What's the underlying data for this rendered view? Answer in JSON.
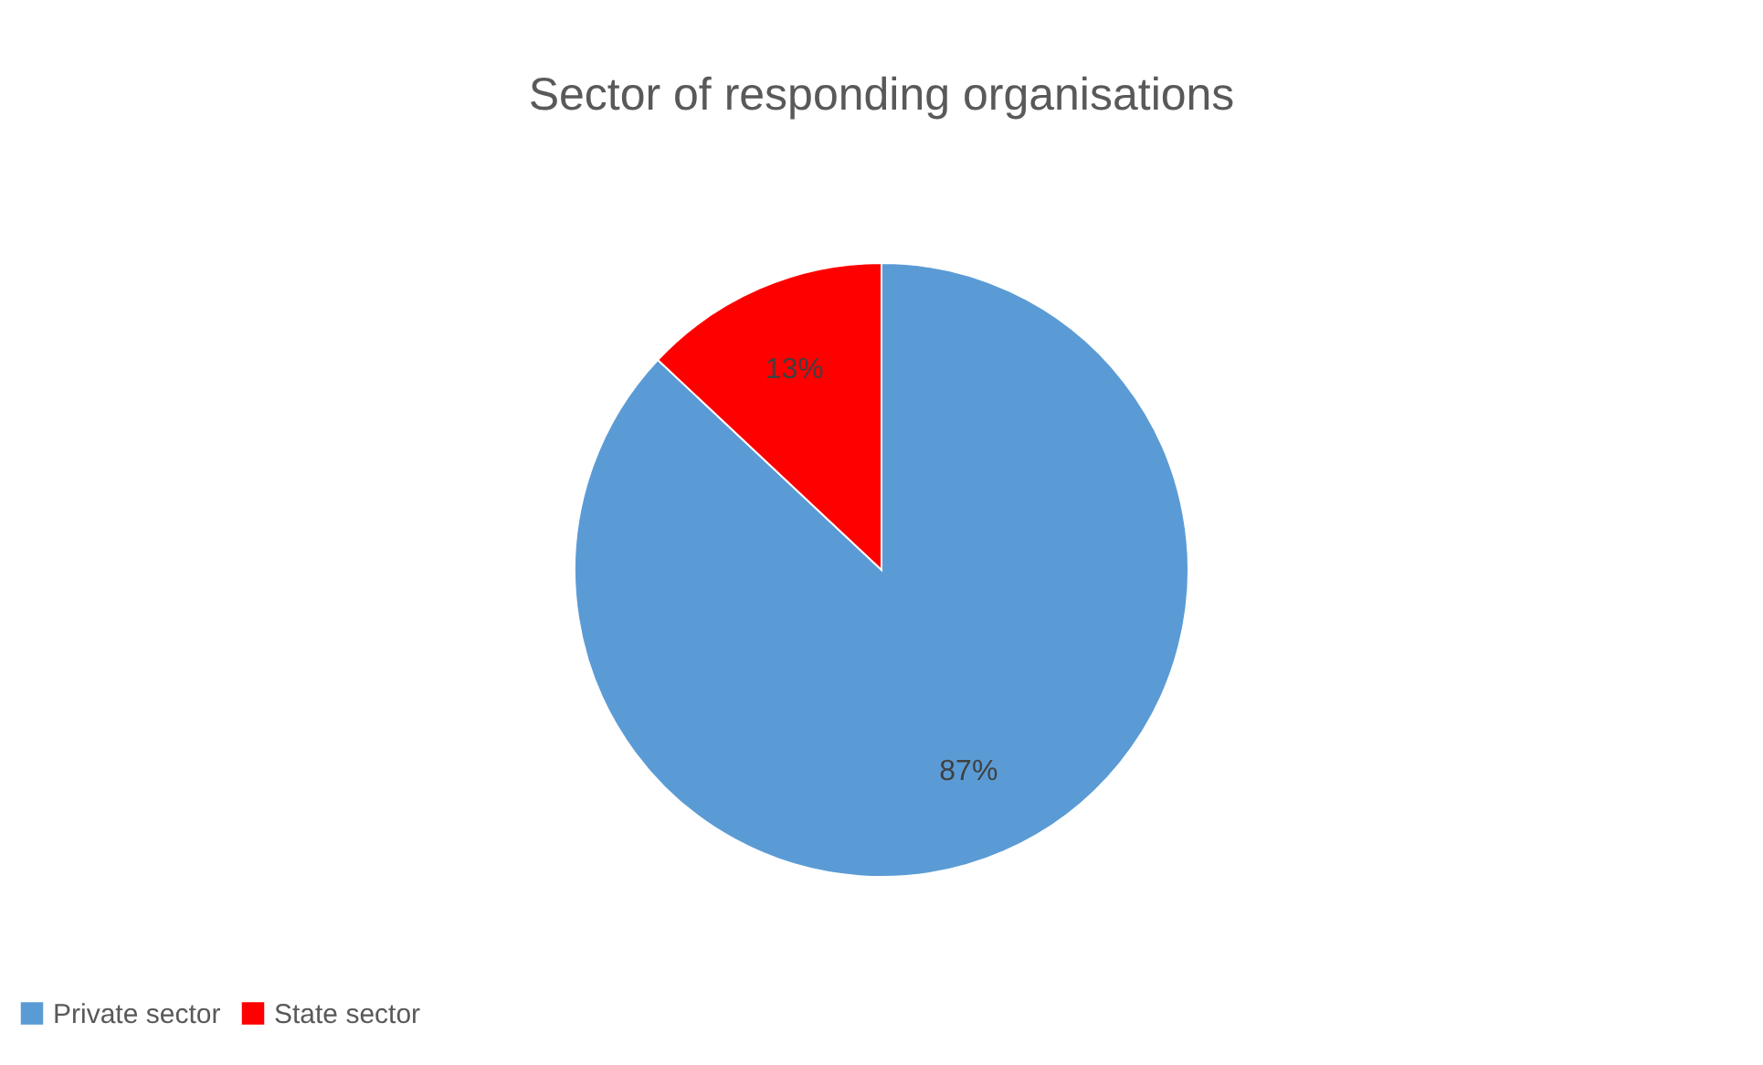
{
  "chart_data": {
    "type": "pie",
    "title": "Sector of responding organisations",
    "categories": [
      "Private sector",
      "State sector"
    ],
    "values": [
      87,
      13
    ],
    "colors": [
      "#5b9bd5",
      "#ff0000"
    ],
    "value_labels": [
      "87%",
      "13%"
    ],
    "legend": "bottom"
  }
}
